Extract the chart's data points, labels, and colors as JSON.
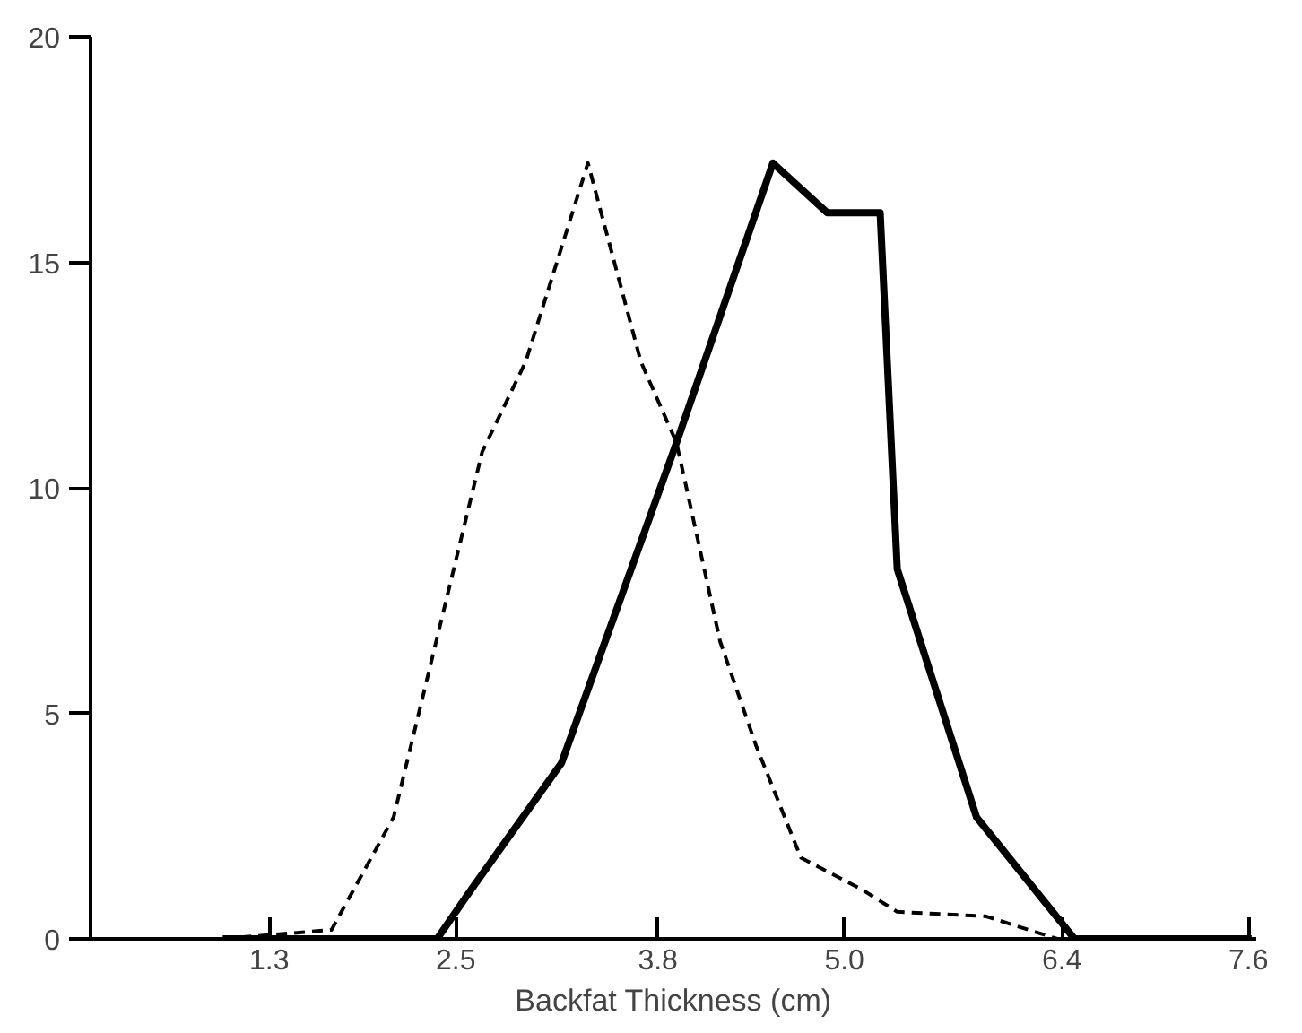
{
  "chart_data": {
    "type": "line",
    "xlabel": "Backfat Thickness (cm)",
    "xlim": [
      0.15,
      7.65
    ],
    "ylim": [
      0,
      20
    ],
    "xticks": [
      1.3,
      2.5,
      3.8,
      {
        "value": 5,
        "label": "5.0"
      },
      6.4,
      7.6
    ],
    "yticks": [
      0,
      5,
      10,
      15,
      20
    ],
    "marker": "none",
    "series": [
      {
        "color": "#000000",
        "line_style": "dashed",
        "x": [
          1.0,
          1.7,
          2.1,
          2.36,
          2.67,
          2.95,
          3.35,
          3.69,
          3.92,
          4.2,
          4.43,
          4.72,
          5.11,
          5.34,
          5.91,
          6.37
        ],
        "values": [
          0,
          0.2,
          2.7,
          6.4,
          10.8,
          12.8,
          17.2,
          12.8,
          11,
          6.6,
          4.3,
          1.8,
          1.1,
          0.6,
          0.5,
          0
        ]
      },
      {
        "color": "#000000",
        "line_style": "solid",
        "x": [
          1.0,
          2.38,
          2.6,
          3.18,
          3.92,
          4.54,
          4.89,
          5.23,
          5.34,
          5.85,
          6.48,
          7.62
        ],
        "values": [
          0,
          0,
          1.1,
          3.9,
          11,
          17.2,
          16.1,
          16.1,
          8.2,
          2.7,
          0,
          0
        ]
      }
    ]
  }
}
